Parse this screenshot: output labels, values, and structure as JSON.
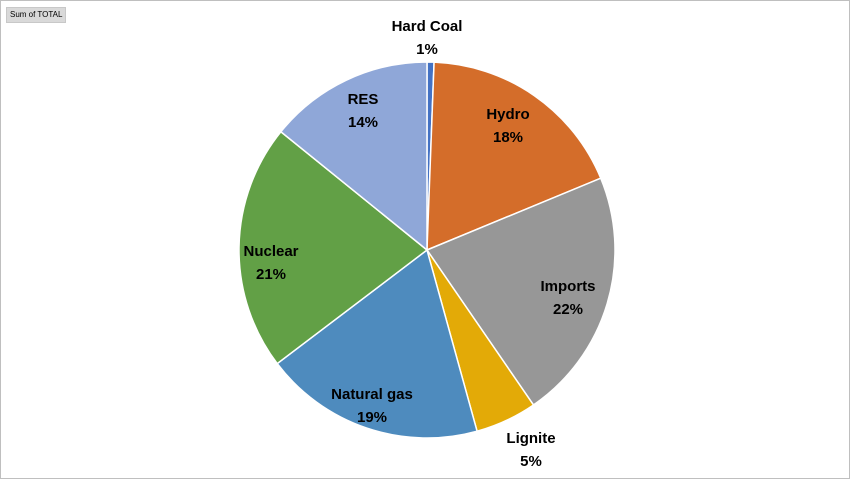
{
  "field_button": {
    "label": "Sum of TOTAL"
  },
  "chart_data": {
    "type": "pie",
    "categories": [
      "Hard Coal",
      "Hydro",
      "Imports",
      "Lignite",
      "Natural gas",
      "Nuclear",
      "RES"
    ],
    "values": [
      0.6,
      18.2,
      21.7,
      5.3,
      19.0,
      21.2,
      14.2
    ],
    "labels": [
      {
        "name": "Hard Coal",
        "pct": "1%"
      },
      {
        "name": "Hydro",
        "pct": "18%"
      },
      {
        "name": "Imports",
        "pct": "22%"
      },
      {
        "name": "Lignite",
        "pct": "5%"
      },
      {
        "name": "Natural gas",
        "pct": "19%"
      },
      {
        "name": "Nuclear",
        "pct": "21%"
      },
      {
        "name": "RES",
        "pct": "14%"
      }
    ],
    "colors": [
      "#4472c4",
      "#d46d2a",
      "#979797",
      "#e3aa07",
      "#4e8bbe",
      "#62a046",
      "#8fa7d8"
    ],
    "start": "12 o'clock",
    "direction": "clockwise"
  }
}
